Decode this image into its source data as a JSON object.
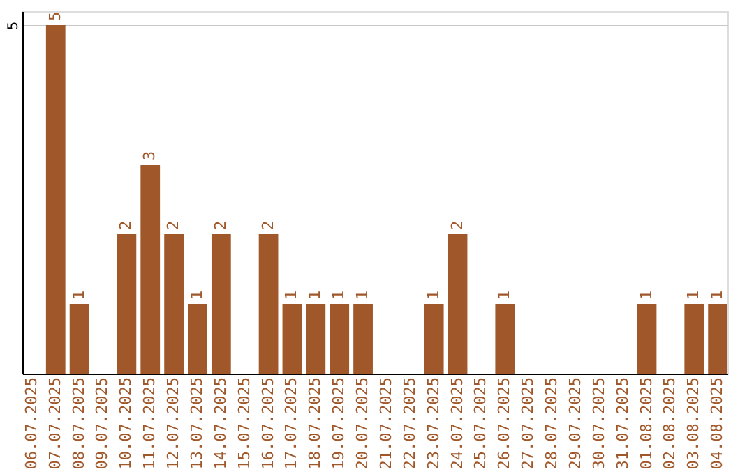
{
  "chart_data": {
    "type": "bar",
    "categories": [
      "06.07.2025",
      "07.07.2025",
      "08.07.2025",
      "09.07.2025",
      "10.07.2025",
      "11.07.2025",
      "12.07.2025",
      "13.07.2025",
      "14.07.2025",
      "15.07.2025",
      "16.07.2025",
      "17.07.2025",
      "18.07.2025",
      "19.07.2025",
      "20.07.2025",
      "21.07.2025",
      "22.07.2025",
      "23.07.2025",
      "24.07.2025",
      "25.07.2025",
      "26.07.2025",
      "27.07.2025",
      "28.07.2025",
      "29.07.2025",
      "30.07.2025",
      "31.07.2025",
      "01.08.2025",
      "02.08.2025",
      "03.08.2025",
      "04.08.2025"
    ],
    "values": [
      0,
      5,
      1,
      0,
      2,
      3,
      2,
      1,
      2,
      0,
      2,
      1,
      1,
      1,
      1,
      0,
      0,
      1,
      2,
      0,
      1,
      0,
      0,
      0,
      0,
      0,
      1,
      0,
      1,
      1
    ],
    "value_labels": [
      null,
      "5",
      "1",
      null,
      "2",
      "3",
      "2",
      "1",
      "2",
      null,
      "2",
      "1",
      "1",
      "1",
      "1",
      null,
      null,
      "1",
      "2",
      null,
      "1",
      null,
      null,
      null,
      null,
      null,
      "1",
      null,
      "1",
      "1"
    ],
    "color": "#a0582a",
    "ylim": [
      0,
      5.2
    ],
    "yticks": [
      5
    ],
    "grid": "y"
  }
}
